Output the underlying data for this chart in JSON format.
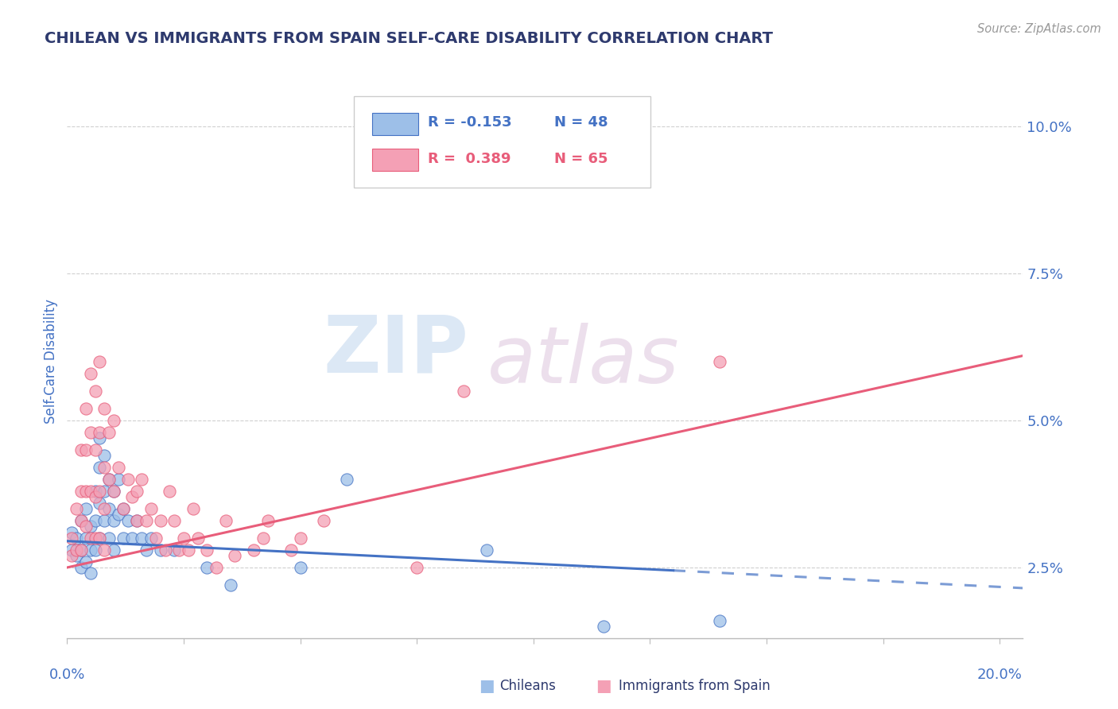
{
  "title": "CHILEAN VS IMMIGRANTS FROM SPAIN SELF-CARE DISABILITY CORRELATION CHART",
  "source_text": "Source: ZipAtlas.com",
  "ylabel": "Self-Care Disability",
  "xlim": [
    0.0,
    0.205
  ],
  "ylim": [
    0.013,
    0.107
  ],
  "xticks": [
    0.0,
    0.025,
    0.05,
    0.075,
    0.1,
    0.125,
    0.15,
    0.175,
    0.2
  ],
  "yticks": [
    0.025,
    0.05,
    0.075,
    0.1
  ],
  "ytick_labels": [
    "2.5%",
    "5.0%",
    "7.5%",
    "10.0%"
  ],
  "chilean_color": "#9dbfe8",
  "spain_color": "#f4a0b5",
  "chilean_line_color": "#4472c4",
  "spain_line_color": "#e85d7a",
  "title_color": "#2e3a6e",
  "axis_color": "#4472c4",
  "legend_R_chilean": "R = -0.153",
  "legend_N_chilean": "N = 48",
  "legend_R_spain": "R =  0.389",
  "legend_N_spain": "N = 65",
  "chilean_points": [
    [
      0.001,
      0.028
    ],
    [
      0.001,
      0.031
    ],
    [
      0.002,
      0.03
    ],
    [
      0.002,
      0.027
    ],
    [
      0.003,
      0.033
    ],
    [
      0.003,
      0.028
    ],
    [
      0.003,
      0.025
    ],
    [
      0.004,
      0.035
    ],
    [
      0.004,
      0.03
    ],
    [
      0.004,
      0.026
    ],
    [
      0.005,
      0.032
    ],
    [
      0.005,
      0.028
    ],
    [
      0.005,
      0.024
    ],
    [
      0.006,
      0.038
    ],
    [
      0.006,
      0.033
    ],
    [
      0.006,
      0.028
    ],
    [
      0.007,
      0.047
    ],
    [
      0.007,
      0.042
    ],
    [
      0.007,
      0.036
    ],
    [
      0.007,
      0.03
    ],
    [
      0.008,
      0.044
    ],
    [
      0.008,
      0.038
    ],
    [
      0.008,
      0.033
    ],
    [
      0.009,
      0.04
    ],
    [
      0.009,
      0.035
    ],
    [
      0.009,
      0.03
    ],
    [
      0.01,
      0.038
    ],
    [
      0.01,
      0.033
    ],
    [
      0.01,
      0.028
    ],
    [
      0.011,
      0.04
    ],
    [
      0.011,
      0.034
    ],
    [
      0.012,
      0.035
    ],
    [
      0.012,
      0.03
    ],
    [
      0.013,
      0.033
    ],
    [
      0.014,
      0.03
    ],
    [
      0.015,
      0.033
    ],
    [
      0.016,
      0.03
    ],
    [
      0.017,
      0.028
    ],
    [
      0.018,
      0.03
    ],
    [
      0.02,
      0.028
    ],
    [
      0.023,
      0.028
    ],
    [
      0.03,
      0.025
    ],
    [
      0.035,
      0.022
    ],
    [
      0.05,
      0.025
    ],
    [
      0.06,
      0.04
    ],
    [
      0.09,
      0.028
    ],
    [
      0.115,
      0.015
    ],
    [
      0.14,
      0.016
    ]
  ],
  "spain_points": [
    [
      0.001,
      0.03
    ],
    [
      0.001,
      0.027
    ],
    [
      0.002,
      0.035
    ],
    [
      0.002,
      0.028
    ],
    [
      0.003,
      0.045
    ],
    [
      0.003,
      0.038
    ],
    [
      0.003,
      0.033
    ],
    [
      0.003,
      0.028
    ],
    [
      0.004,
      0.052
    ],
    [
      0.004,
      0.045
    ],
    [
      0.004,
      0.038
    ],
    [
      0.004,
      0.032
    ],
    [
      0.005,
      0.058
    ],
    [
      0.005,
      0.048
    ],
    [
      0.005,
      0.038
    ],
    [
      0.005,
      0.03
    ],
    [
      0.006,
      0.055
    ],
    [
      0.006,
      0.045
    ],
    [
      0.006,
      0.037
    ],
    [
      0.006,
      0.03
    ],
    [
      0.007,
      0.06
    ],
    [
      0.007,
      0.048
    ],
    [
      0.007,
      0.038
    ],
    [
      0.007,
      0.03
    ],
    [
      0.008,
      0.052
    ],
    [
      0.008,
      0.042
    ],
    [
      0.008,
      0.035
    ],
    [
      0.008,
      0.028
    ],
    [
      0.009,
      0.048
    ],
    [
      0.009,
      0.04
    ],
    [
      0.01,
      0.05
    ],
    [
      0.01,
      0.038
    ],
    [
      0.011,
      0.042
    ],
    [
      0.012,
      0.035
    ],
    [
      0.013,
      0.04
    ],
    [
      0.014,
      0.037
    ],
    [
      0.015,
      0.038
    ],
    [
      0.015,
      0.033
    ],
    [
      0.016,
      0.04
    ],
    [
      0.017,
      0.033
    ],
    [
      0.018,
      0.035
    ],
    [
      0.019,
      0.03
    ],
    [
      0.02,
      0.033
    ],
    [
      0.021,
      0.028
    ],
    [
      0.022,
      0.038
    ],
    [
      0.023,
      0.033
    ],
    [
      0.024,
      0.028
    ],
    [
      0.025,
      0.03
    ],
    [
      0.026,
      0.028
    ],
    [
      0.027,
      0.035
    ],
    [
      0.028,
      0.03
    ],
    [
      0.03,
      0.028
    ],
    [
      0.032,
      0.025
    ],
    [
      0.034,
      0.033
    ],
    [
      0.036,
      0.027
    ],
    [
      0.04,
      0.028
    ],
    [
      0.042,
      0.03
    ],
    [
      0.043,
      0.033
    ],
    [
      0.048,
      0.028
    ],
    [
      0.05,
      0.03
    ],
    [
      0.055,
      0.033
    ],
    [
      0.075,
      0.025
    ],
    [
      0.085,
      0.055
    ],
    [
      0.095,
      0.095
    ],
    [
      0.14,
      0.06
    ]
  ],
  "chilean_trend_solid": {
    "x_start": 0.0,
    "y_start": 0.0295,
    "x_end": 0.13,
    "y_end": 0.0245
  },
  "chilean_trend_dash": {
    "x_start": 0.13,
    "y_start": 0.0245,
    "x_end": 0.205,
    "y_end": 0.0215
  },
  "spain_trend": {
    "x_start": 0.0,
    "y_start": 0.025,
    "x_end": 0.205,
    "y_end": 0.061
  },
  "background_color": "#ffffff",
  "grid_color": "#d0d0d0",
  "watermark_color": "#dce8f5",
  "watermark_color2": "#e8d8e8"
}
